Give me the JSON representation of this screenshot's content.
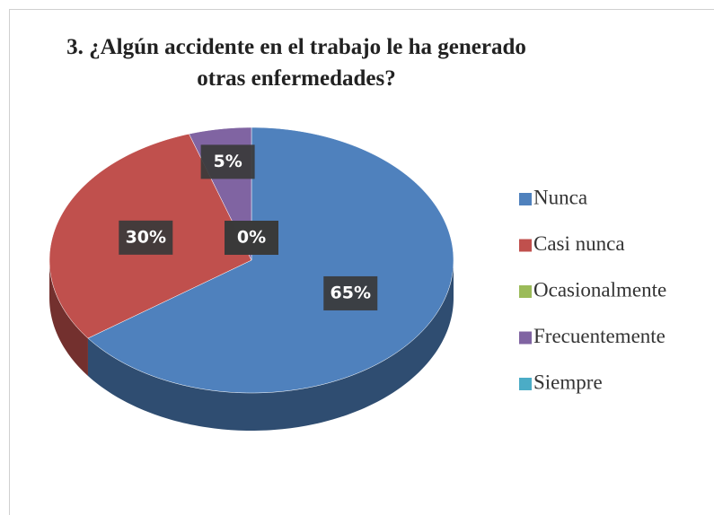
{
  "chart_data": {
    "type": "pie",
    "title": "3. ¿Algún accidente en el trabajo le ha generado otras enfermedades?",
    "categories": [
      "Nunca",
      "Casi nunca",
      "Ocasionalmente",
      "Frecuentemente",
      "Siempre"
    ],
    "values": [
      65,
      30,
      0,
      5,
      0
    ],
    "value_labels": [
      "65%",
      "30%",
      "0%",
      "5%",
      "0%"
    ],
    "colors": [
      "#4f81bd",
      "#c0504d",
      "#9bbb59",
      "#8064a2",
      "#4bacc6"
    ],
    "legend": "right"
  }
}
